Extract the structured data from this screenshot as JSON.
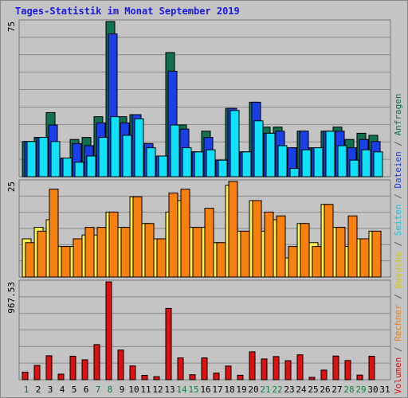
{
  "title": "Tages-Statistik im Monat September 2019",
  "chart_data": [
    {
      "type": "bar",
      "panel": "Anfragen / Dateien / Seiten",
      "ylabel_max": "75",
      "ylim": [
        0,
        75
      ],
      "categories": [
        "1",
        "2",
        "3",
        "4",
        "5",
        "6",
        "7",
        "8",
        "9",
        "10",
        "11",
        "12",
        "13",
        "14",
        "15",
        "16",
        "17",
        "18",
        "19",
        "20",
        "21",
        "22",
        "23",
        "24",
        "25",
        "26",
        "27",
        "28",
        "29",
        "30",
        "31"
      ],
      "series": [
        {
          "name": "Anfragen",
          "color": "#107050",
          "values": [
            17,
            19,
            31,
            9,
            18,
            19,
            29,
            75,
            29,
            30,
            16,
            10,
            60,
            25,
            12,
            22,
            8,
            33,
            12,
            36,
            24,
            24,
            14,
            22,
            14,
            22,
            24,
            18,
            21,
            20,
            0
          ]
        },
        {
          "name": "Dateien",
          "color": "#1a3fe8",
          "values": [
            17,
            19,
            25,
            9,
            16,
            15,
            26,
            69,
            26,
            30,
            16,
            10,
            51,
            23,
            12,
            19,
            8,
            33,
            12,
            36,
            21,
            22,
            14,
            22,
            14,
            22,
            22,
            14,
            18,
            17,
            0
          ]
        },
        {
          "name": "Seiten",
          "color": "#10e0f8",
          "values": [
            17,
            19,
            17,
            9,
            7,
            10,
            19,
            29,
            20,
            28,
            14,
            10,
            25,
            14,
            12,
            13,
            8,
            32,
            12,
            27,
            21,
            15,
            4,
            13,
            14,
            22,
            15,
            8,
            13,
            12,
            0
          ]
        }
      ]
    },
    {
      "type": "bar",
      "panel": "Besuche / Rechner",
      "ylabel_max": "25",
      "ylim": [
        0,
        25
      ],
      "categories": [
        "1",
        "2",
        "3",
        "4",
        "5",
        "6",
        "7",
        "8",
        "9",
        "10",
        "11",
        "12",
        "13",
        "14",
        "15",
        "16",
        "17",
        "18",
        "19",
        "20",
        "21",
        "22",
        "23",
        "24",
        "25",
        "26",
        "27",
        "28",
        "29",
        "30",
        "31"
      ],
      "series": [
        {
          "name": "Besuche",
          "color": "#f8f050",
          "values": [
            10,
            13,
            15,
            8,
            8,
            11,
            11,
            17,
            13,
            21,
            14,
            10,
            17,
            20,
            13,
            13,
            9,
            24,
            12,
            20,
            12,
            15,
            5,
            14,
            9,
            19,
            13,
            8,
            10,
            12,
            0
          ]
        },
        {
          "name": "Rechner",
          "color": "#f88010",
          "values": [
            9,
            12,
            23,
            8,
            10,
            13,
            13,
            17,
            13,
            21,
            14,
            10,
            22,
            23,
            13,
            18,
            9,
            25,
            12,
            20,
            17,
            16,
            8,
            14,
            8,
            19,
            13,
            16,
            10,
            12,
            0
          ]
        }
      ]
    },
    {
      "type": "bar",
      "panel": "Volumen",
      "ylabel_max": "967.53",
      "ylim": [
        0,
        967.53
      ],
      "categories": [
        "1",
        "2",
        "3",
        "4",
        "5",
        "6",
        "7",
        "8",
        "9",
        "10",
        "11",
        "12",
        "13",
        "14",
        "15",
        "16",
        "17",
        "18",
        "19",
        "20",
        "21",
        "22",
        "23",
        "24",
        "25",
        "26",
        "27",
        "28",
        "29",
        "30",
        "31"
      ],
      "series": [
        {
          "name": "Volumen",
          "color": "#e01010",
          "values": [
            75,
            141,
            237,
            55,
            232,
            197,
            347,
            967,
            293,
            136,
            43,
            30,
            705,
            215,
            49,
            215,
            65,
            135,
            44,
            276,
            205,
            229,
            188,
            246,
            23,
            95,
            234,
            190,
            46,
            232,
            0
          ]
        }
      ]
    }
  ],
  "legend": {
    "volumen": "Volumen",
    "sep1": " / ",
    "rechner": "Rechner",
    "sep2": " / ",
    "besuche": "Besuche",
    "sep3": " / ",
    "seiten": "Seiten",
    "sep4": " / ",
    "dateien": "Dateien",
    "sep5": " / ",
    "anfragen": "Anfragen"
  },
  "colors": {
    "background": "#c4c4c4",
    "title": "#1a1ae0",
    "weekday_label": "#000000",
    "weekend_label": "#108040"
  },
  "weekend_days": [
    "1",
    "7",
    "8",
    "14",
    "15",
    "21",
    "22",
    "28",
    "29"
  ]
}
